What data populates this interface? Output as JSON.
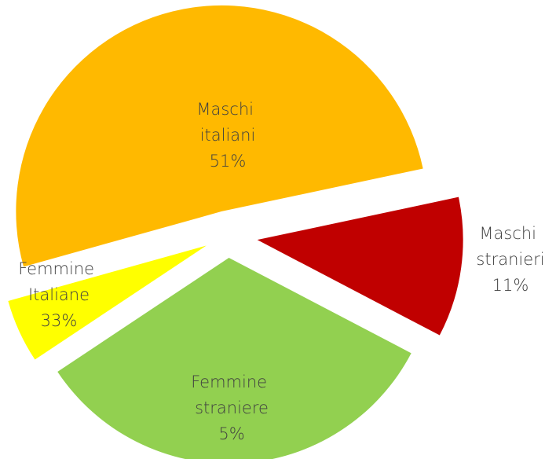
{
  "chart_data": {
    "type": "pie",
    "categories": [
      "Maschi italiani",
      "Maschi stranieri",
      "Femmine Italiane",
      "Femmine straniere"
    ],
    "values": [
      51,
      11,
      33,
      5
    ],
    "value_labels": [
      "51%",
      "11%",
      "33%",
      "5%"
    ],
    "colors": [
      "#FFB900",
      "#C00000",
      "#92D050",
      "#FFFF00"
    ]
  }
}
